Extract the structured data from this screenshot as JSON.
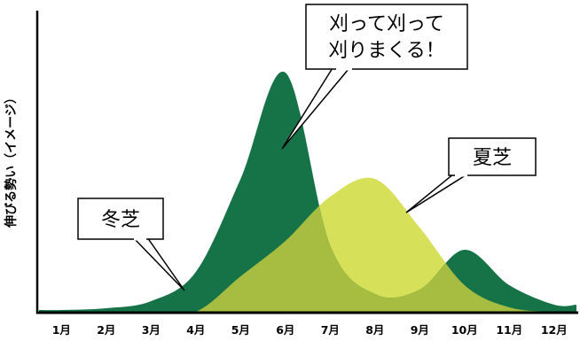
{
  "chart_data": {
    "type": "area",
    "ylabel": "伸びる勢い（イメージ）",
    "xlabel": "",
    "categories": [
      "1月",
      "2月",
      "3月",
      "4月",
      "5月",
      "6月",
      "7月",
      "8月",
      "9月",
      "10月",
      "11月",
      "12月"
    ],
    "series": [
      {
        "key": "winter",
        "color": "#157347",
        "values": [
          2,
          4,
          12,
          45,
          150,
          270,
          75,
          20,
          25,
          70,
          30,
          8
        ]
      },
      {
        "key": "summer",
        "color": "#d6e059",
        "values": [
          0,
          0,
          0,
          0,
          40,
          80,
          130,
          150,
          95,
          30,
          5,
          0
        ]
      }
    ],
    "ylim": [
      0,
      290
    ],
    "grid": false,
    "legend": "none",
    "overlap_color": "#a7bd42",
    "annotations": [
      {
        "target": "winter-peak",
        "lines": [
          "刈って刈って",
          "刈りまくる！"
        ]
      },
      {
        "target": "summer",
        "lines": [
          "夏芝"
        ]
      },
      {
        "target": "winter",
        "lines": [
          "冬芝"
        ]
      }
    ]
  }
}
